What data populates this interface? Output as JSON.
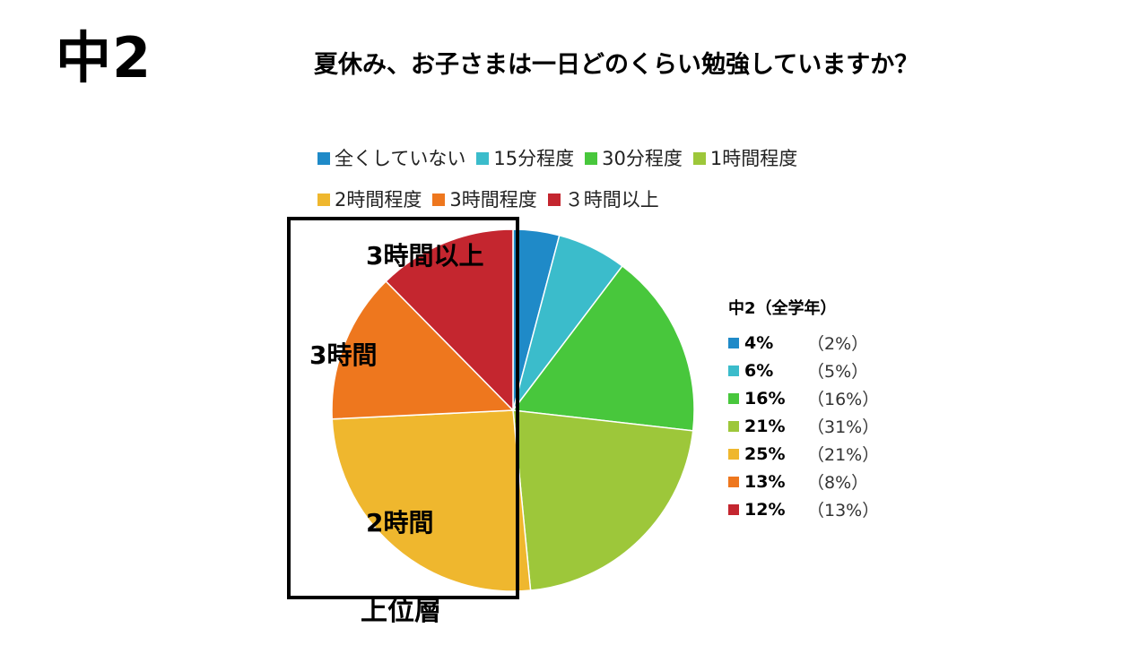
{
  "page": {
    "grade_title": "中2",
    "tier_label": "上位層"
  },
  "chart_data": {
    "type": "pie",
    "title": "夏休み、お子さまは一日どのくらい勉強していますか？",
    "legend_placement": "top",
    "categories": [
      "全くしていない",
      "15分程度",
      "30分程度",
      "1時間程度",
      "2時間程度",
      "3時間程度",
      "３時間以上"
    ],
    "values": [
      4,
      6,
      16,
      21,
      25,
      13,
      12
    ],
    "colors": [
      "#1f8ac8",
      "#3bbccb",
      "#48c73c",
      "#9dc73a",
      "#efb72e",
      "#ee771e",
      "#c4262f"
    ],
    "slice_labels": [
      {
        "slice": 6,
        "text": "3時間以上"
      },
      {
        "slice": 5,
        "text": "3時間"
      },
      {
        "slice": 4,
        "text": "2時間"
      }
    ],
    "table": {
      "header": "中2（全学年）",
      "rows": [
        {
          "pct": "4%",
          "all": "（2%）"
        },
        {
          "pct": "6%",
          "all": "（5%）"
        },
        {
          "pct": "16%",
          "all": "（16%）"
        },
        {
          "pct": "21%",
          "all": "（31%）"
        },
        {
          "pct": "25%",
          "all": "（21%）"
        },
        {
          "pct": "13%",
          "all": "（8%）"
        },
        {
          "pct": "12%",
          "all": "（13%）"
        }
      ]
    }
  }
}
